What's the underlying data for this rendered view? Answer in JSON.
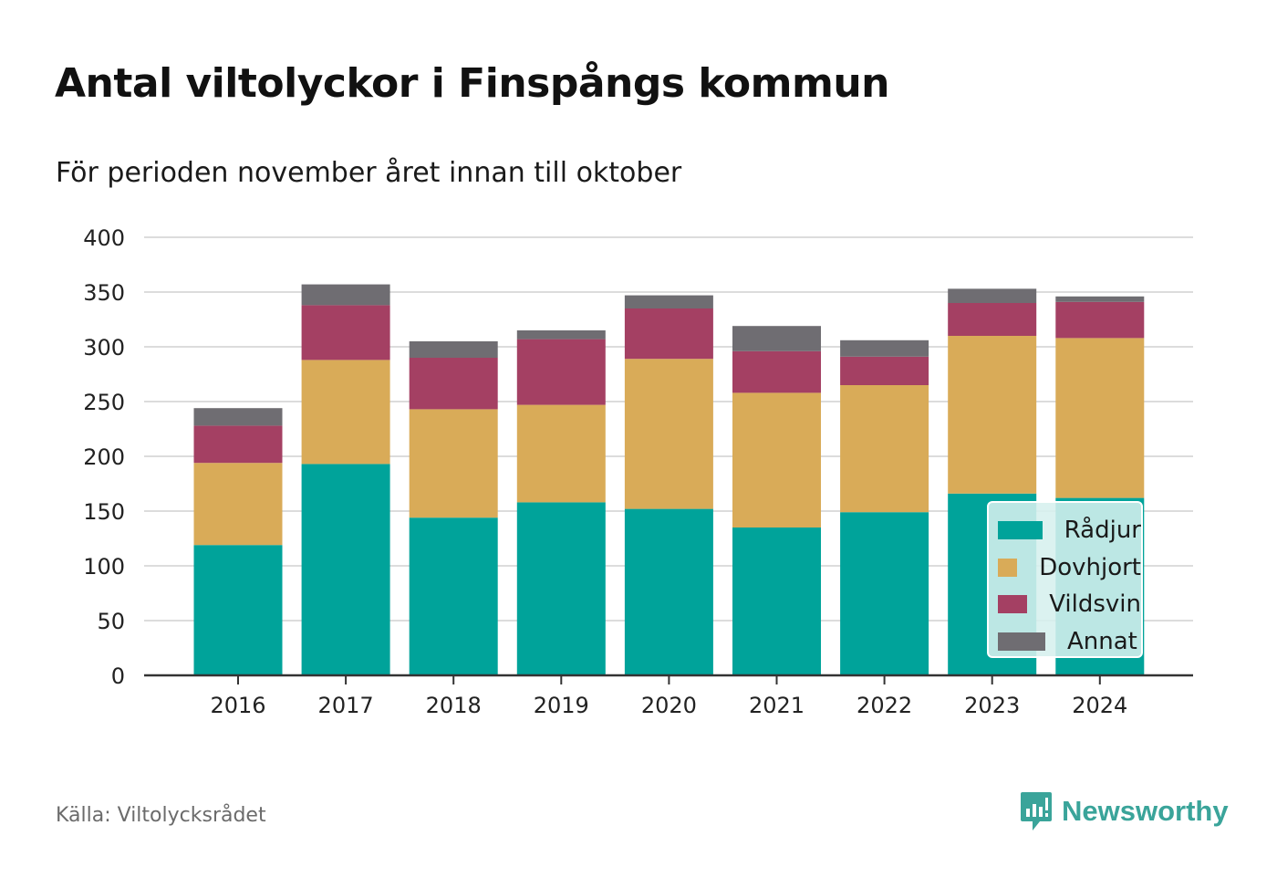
{
  "title": "Antal viltolyckor i Finspångs kommun",
  "subtitle": "För perioden november året innan till oktober",
  "source": "Källa: Viltolycksrådet",
  "brand": "Newsworthy",
  "colors": {
    "Rådjur": "#00a39a",
    "Dovhjort": "#d9ab58",
    "Vildsvin": "#a44063",
    "Annat": "#6f6d72",
    "grid": "#dcdcdc",
    "axis": "#333333",
    "brand": "#3aa49a"
  },
  "chart_data": {
    "type": "bar",
    "stacked": true,
    "categories": [
      "2016",
      "2017",
      "2018",
      "2019",
      "2020",
      "2021",
      "2022",
      "2023",
      "2024"
    ],
    "series": [
      {
        "name": "Rådjur",
        "values": [
          119,
          193,
          144,
          158,
          152,
          135,
          149,
          166,
          162
        ]
      },
      {
        "name": "Dovhjort",
        "values": [
          75,
          95,
          99,
          89,
          137,
          123,
          116,
          144,
          146
        ]
      },
      {
        "name": "Vildsvin",
        "values": [
          34,
          50,
          47,
          60,
          46,
          38,
          26,
          30,
          33
        ]
      },
      {
        "name": "Annat",
        "values": [
          16,
          19,
          15,
          8,
          12,
          23,
          15,
          13,
          5
        ]
      }
    ],
    "ylim": [
      0,
      400
    ],
    "yticks": [
      "0",
      "50",
      "100",
      "150",
      "200",
      "250",
      "300",
      "350",
      "400"
    ],
    "grid": true,
    "legend_position": "bottom-right"
  }
}
